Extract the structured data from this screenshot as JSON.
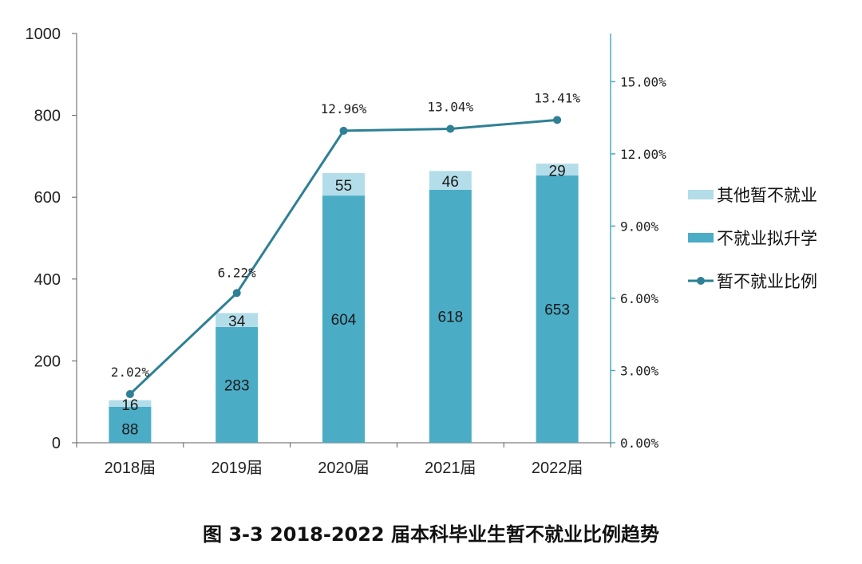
{
  "caption": "图 3-3   2018-2022 届本科毕业生暂不就业比例趋势",
  "chart_data": {
    "type": "bar",
    "categories": [
      "2018届",
      "2019届",
      "2020届",
      "2021届",
      "2022届"
    ],
    "series": [
      {
        "name": "不就业拟升学",
        "kind": "stacked-bar",
        "values": [
          88,
          283,
          604,
          618,
          653
        ],
        "color": "#4bacc6"
      },
      {
        "name": "其他暂不就业",
        "kind": "stacked-bar",
        "values": [
          16,
          34,
          55,
          46,
          29
        ],
        "color": "#b3dde9"
      },
      {
        "name": "暂不就业比例",
        "kind": "line",
        "axis": "right",
        "values": [
          2.02,
          6.22,
          12.96,
          13.04,
          13.41
        ],
        "labels": [
          "2.02%",
          "6.22%",
          "12.96%",
          "13.04%",
          "13.41%"
        ],
        "color": "#2e8094"
      }
    ],
    "left_axis": {
      "ylim": [
        0,
        1000
      ],
      "ticks": [
        "0",
        "200",
        "400",
        "600",
        "800",
        "1000"
      ]
    },
    "right_axis": {
      "ylim": [
        0,
        17
      ],
      "ticks": [
        "0.00%",
        "3.00%",
        "6.00%",
        "9.00%",
        "12.00%",
        "15.00%"
      ],
      "tick_values": [
        0,
        3,
        6,
        9,
        12,
        15
      ],
      "color": "#4bacc6"
    },
    "legend": {
      "placement": "right",
      "items": [
        "其他暂不就业",
        "不就业拟升学",
        "暂不就业比例"
      ]
    }
  }
}
